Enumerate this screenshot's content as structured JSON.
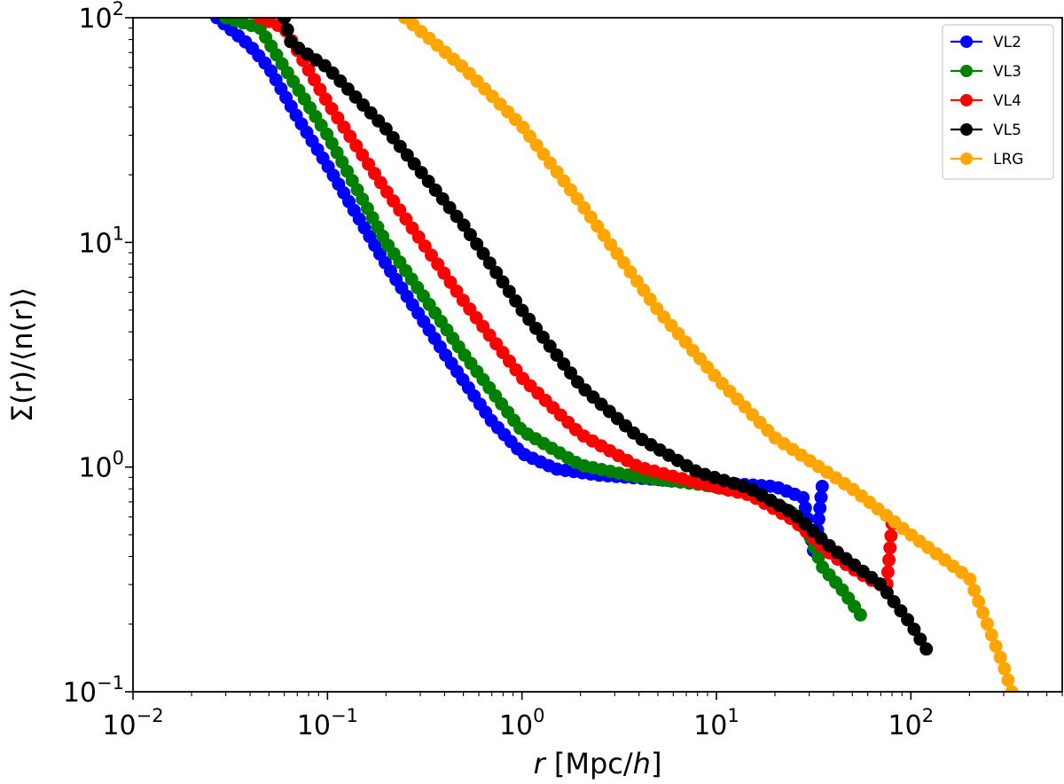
{
  "chart_data": {
    "type": "line",
    "scale": {
      "x": "log",
      "y": "log"
    },
    "xlim": [
      0.01,
      600
    ],
    "ylim": [
      0.1,
      100
    ],
    "xlabel": {
      "italic": "r",
      "rest": " [Mpc/",
      "italic2": "h",
      "end": "]"
    },
    "ylabel": "Σ(r)/⟨n(r)⟩",
    "x_ticks": [
      {
        "base": "10",
        "exp": "−2"
      },
      {
        "base": "10",
        "exp": "−1"
      },
      {
        "base": "10",
        "exp": "0"
      },
      {
        "base": "10",
        "exp": "1"
      },
      {
        "base": "10",
        "exp": "2"
      }
    ],
    "y_ticks": [
      {
        "base": "10",
        "exp": "−1"
      },
      {
        "base": "10",
        "exp": "0"
      },
      {
        "base": "10",
        "exp": "1"
      },
      {
        "base": "10",
        "exp": "2"
      }
    ],
    "legend_position": "top-right",
    "marker": "circle",
    "series": [
      {
        "name": "VL2",
        "color": "#0000ff",
        "anchors": [
          [
            0.027,
            100
          ],
          [
            0.04,
            75
          ],
          [
            0.05,
            60
          ],
          [
            0.07,
            36
          ],
          [
            0.1,
            22
          ],
          [
            0.2,
            8
          ],
          [
            0.4,
            3.2
          ],
          [
            0.7,
            1.6
          ],
          [
            1.0,
            1.15
          ],
          [
            1.5,
            0.98
          ],
          [
            2.5,
            0.92
          ],
          [
            5,
            0.88
          ],
          [
            10,
            0.85
          ],
          [
            20,
            0.82
          ],
          [
            28,
            0.73
          ],
          [
            32,
            0.4
          ],
          [
            35,
            0.82
          ]
        ],
        "n_points": 100
      },
      {
        "name": "VL3",
        "color": "#008000",
        "anchors": [
          [
            0.03,
            100
          ],
          [
            0.045,
            90
          ],
          [
            0.06,
            60
          ],
          [
            0.1,
            30
          ],
          [
            0.2,
            10
          ],
          [
            0.5,
            3.2
          ],
          [
            1.0,
            1.45
          ],
          [
            2,
            1.02
          ],
          [
            4,
            0.9
          ],
          [
            8,
            0.84
          ],
          [
            15,
            0.77
          ],
          [
            25,
            0.62
          ],
          [
            30,
            0.5
          ],
          [
            35,
            0.36
          ],
          [
            45,
            0.28
          ],
          [
            55,
            0.22
          ]
        ],
        "n_points": 95
      },
      {
        "name": "VL4",
        "color": "#ff0000",
        "anchors": [
          [
            0.045,
            100
          ],
          [
            0.06,
            90
          ],
          [
            0.1,
            42
          ],
          [
            0.2,
            17
          ],
          [
            0.5,
            5.5
          ],
          [
            1,
            2.5
          ],
          [
            2,
            1.4
          ],
          [
            4,
            1.0
          ],
          [
            8,
            0.85
          ],
          [
            15,
            0.75
          ],
          [
            25,
            0.58
          ],
          [
            40,
            0.4
          ],
          [
            60,
            0.32
          ],
          [
            75,
            0.29
          ],
          [
            80,
            0.56
          ]
        ],
        "n_points": 90
      },
      {
        "name": "VL5",
        "color": "#000000",
        "anchors": [
          [
            0.06,
            100
          ],
          [
            0.065,
            77
          ],
          [
            0.1,
            60
          ],
          [
            0.2,
            32
          ],
          [
            0.5,
            12
          ],
          [
            1,
            5
          ],
          [
            2,
            2.3
          ],
          [
            4,
            1.35
          ],
          [
            8,
            0.95
          ],
          [
            15,
            0.8
          ],
          [
            25,
            0.62
          ],
          [
            40,
            0.43
          ],
          [
            70,
            0.3
          ],
          [
            100,
            0.2
          ],
          [
            120,
            0.155
          ]
        ],
        "n_points": 85
      },
      {
        "name": "LRG",
        "color": "#ffa500",
        "anchors": [
          [
            0.25,
            100
          ],
          [
            0.5,
            60
          ],
          [
            1,
            33
          ],
          [
            2,
            15
          ],
          [
            5,
            5
          ],
          [
            10,
            2.5
          ],
          [
            20,
            1.35
          ],
          [
            50,
            0.8
          ],
          [
            100,
            0.5
          ],
          [
            200,
            0.32
          ],
          [
            300,
            0.13
          ],
          [
            330,
            0.1
          ]
        ],
        "n_points": 85
      }
    ]
  }
}
